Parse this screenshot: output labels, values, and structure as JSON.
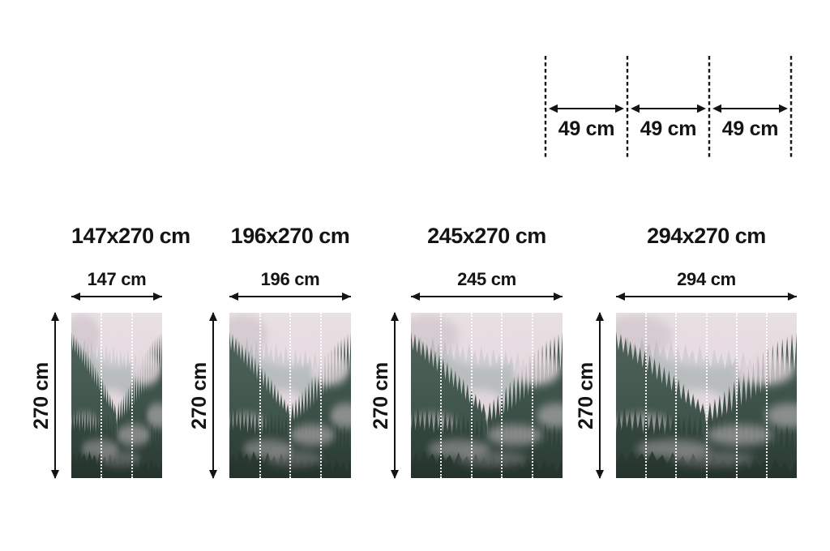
{
  "page": {
    "background": "#ffffff"
  },
  "ruler": {
    "segments": [
      "49 cm",
      "49 cm",
      "49 cm"
    ]
  },
  "sizes": [
    {
      "title": "147x270 cm",
      "width_label": "147 cm",
      "height_label": "270 cm",
      "panels": 3
    },
    {
      "title": "196x270 cm",
      "width_label": "196 cm",
      "height_label": "270 cm",
      "panels": 4
    },
    {
      "title": "245x270 cm",
      "width_label": "245 cm",
      "height_label": "270 cm",
      "panels": 5
    },
    {
      "title": "294x270 cm",
      "width_label": "294 cm",
      "height_label": "270 cm",
      "panels": 6
    }
  ],
  "artwork": {
    "name": "foggy-forest-mural",
    "palette": {
      "sky": "#e9e1e5",
      "fog": "#ecdfe5",
      "far_trees": "#92a6a0",
      "mid_trees": "#4a655a",
      "dark_trees": "#2e463c",
      "deep_trees": "#1d2e26",
      "cut_line": "#ffffff",
      "dimension_lines": "#141414"
    }
  }
}
